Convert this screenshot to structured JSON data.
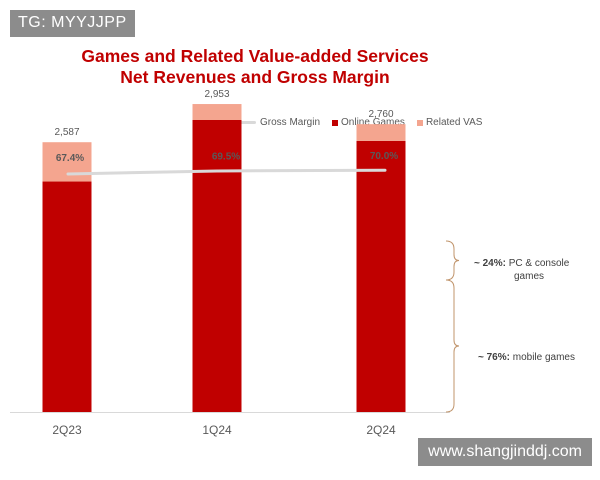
{
  "watermarks": {
    "top_left": "TG: MYYJJPP",
    "bottom_right": "www.shangjinddj.com"
  },
  "chart_data": {
    "type": "bar",
    "title": "Games and Related Value-added Services",
    "subtitle": "Net Revenues and Gross Margin",
    "categories": [
      "2Q23",
      "1Q24",
      "2Q24"
    ],
    "series": [
      {
        "name": "Online Games",
        "values": [
          2210,
          2800,
          2600
        ],
        "color": "#c00000"
      },
      {
        "name": "Related VAS",
        "values": [
          377,
          153,
          160
        ],
        "color": "#f4a58f"
      }
    ],
    "totals": [
      "2,587",
      "2,953",
      "2,760"
    ],
    "total_values": [
      2587,
      2953,
      2760
    ],
    "line_series": {
      "name": "Gross Margin",
      "values": [
        67.4,
        69.5,
        70.0
      ],
      "labels": [
        "67.4%",
        "69.5%",
        "70.0%"
      ],
      "color": "#d9d9d9",
      "ylim": [
        60,
        75
      ]
    },
    "ylim": [
      0,
      3500
    ],
    "stacked": true,
    "legend_position": "top",
    "xlabel": "",
    "ylabel": ""
  },
  "annotations": [
    {
      "bold": "~ 24%:",
      "text": " PC & console",
      "text2": "games"
    },
    {
      "bold": "~ 76%:",
      "text": " mobile games"
    }
  ]
}
